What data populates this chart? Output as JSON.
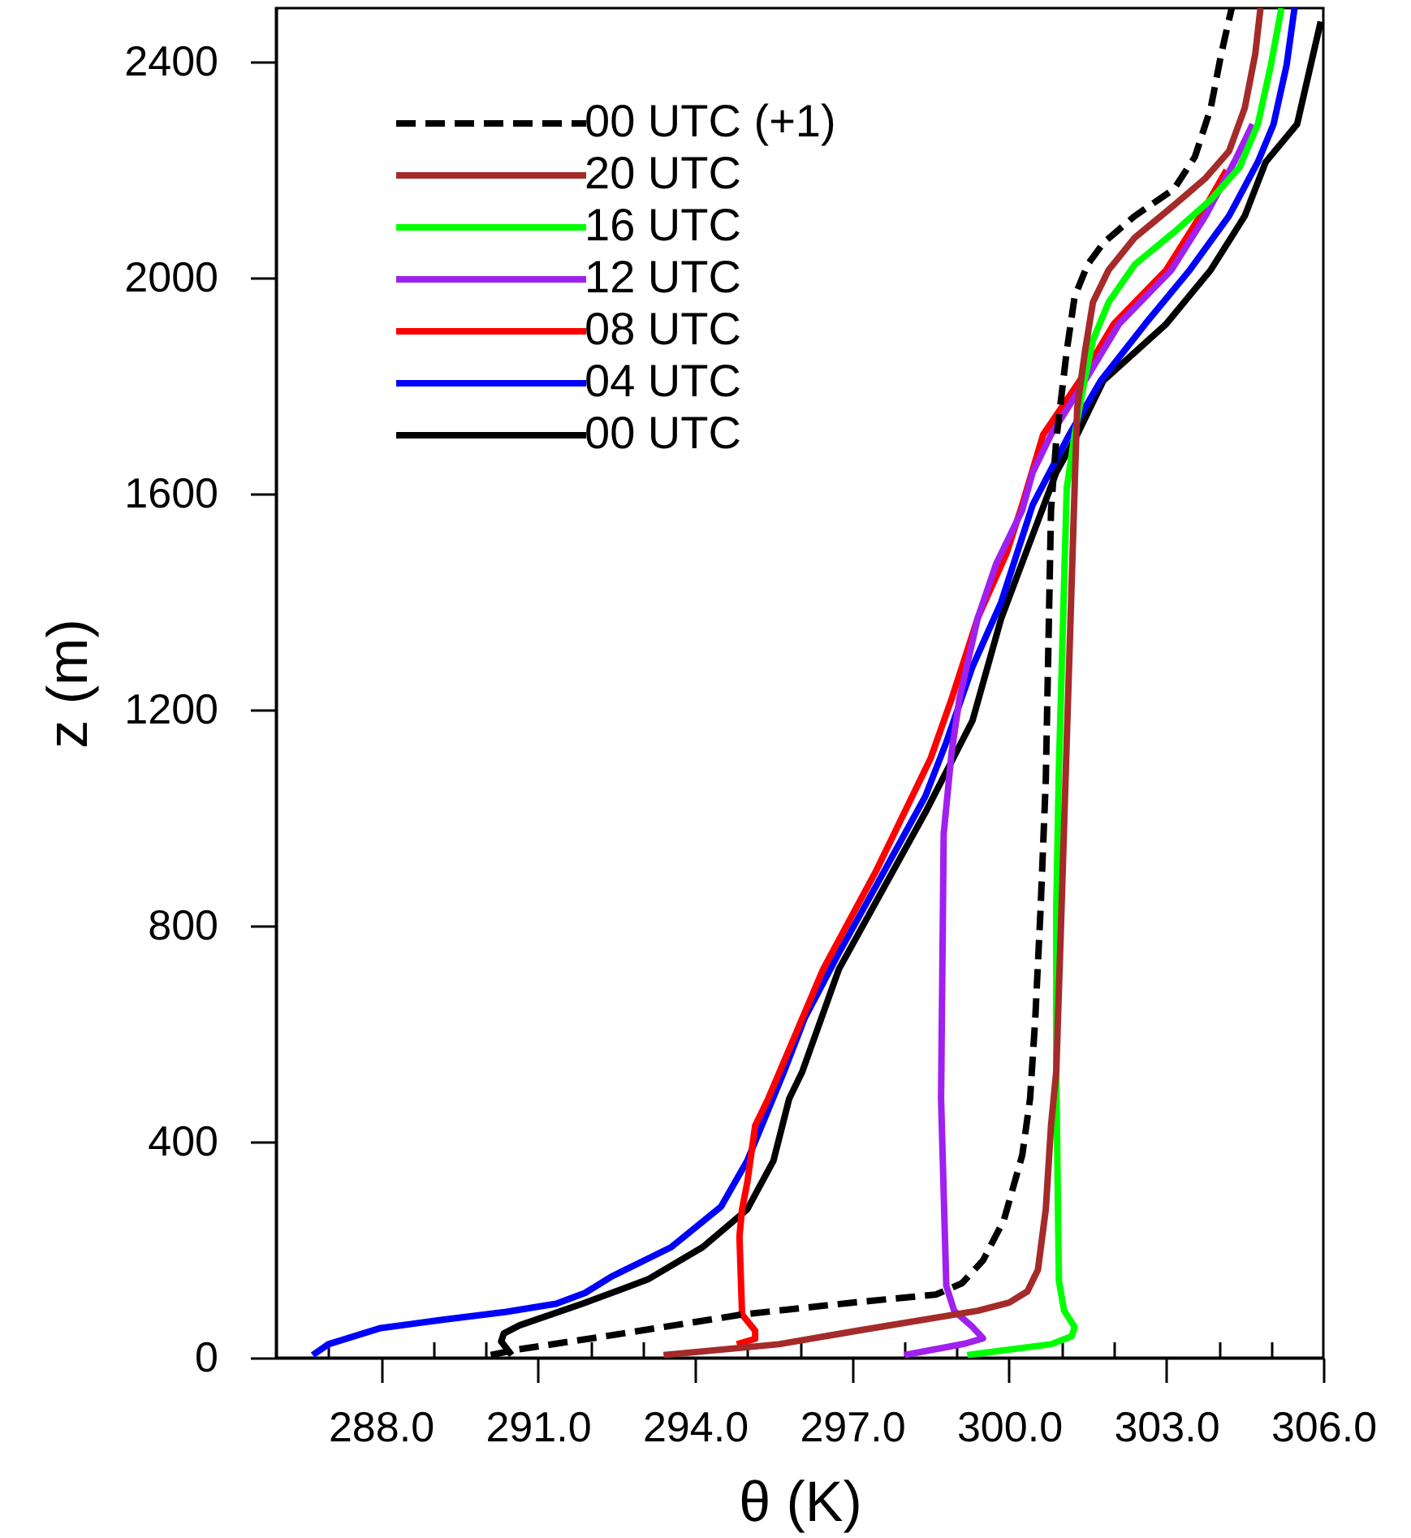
{
  "chart_data": {
    "type": "line",
    "xlabel": "θ (K)",
    "ylabel": "z (m)",
    "xlim": [
      286.0,
      306.0
    ],
    "ylim": [
      0,
      2500
    ],
    "xticks": [
      {
        "value": 287,
        "label": null
      },
      {
        "value": 288,
        "label": "288.0"
      },
      {
        "value": 289,
        "label": null
      },
      {
        "value": 290,
        "label": null
      },
      {
        "value": 291,
        "label": "291.0"
      },
      {
        "value": 292,
        "label": null
      },
      {
        "value": 293,
        "label": null
      },
      {
        "value": 294,
        "label": "294.0"
      },
      {
        "value": 295,
        "label": null
      },
      {
        "value": 296,
        "label": null
      },
      {
        "value": 297,
        "label": "297.0"
      },
      {
        "value": 298,
        "label": null
      },
      {
        "value": 299,
        "label": null
      },
      {
        "value": 300,
        "label": "300.0"
      },
      {
        "value": 301,
        "label": null
      },
      {
        "value": 302,
        "label": null
      },
      {
        "value": 303,
        "label": "303.0"
      },
      {
        "value": 304,
        "label": null
      },
      {
        "value": 305,
        "label": null
      },
      {
        "value": 306,
        "label": "306.0"
      }
    ],
    "yticks": [
      0,
      400,
      800,
      1200,
      1600,
      2000,
      2400
    ],
    "legend": "top left",
    "line_style": "solid",
    "series": [
      {
        "name": "00 UTC (+1)",
        "color": "#000000",
        "line_style": "dashed",
        "x": [
          290.1,
          290.6,
          292.3,
          294.9,
          297.0,
          298.6,
          299.1,
          299.5,
          299.9,
          300.25,
          300.4,
          300.5,
          300.6,
          300.7,
          300.8,
          300.9,
          301.1,
          301.25,
          301.5,
          301.8,
          302.4,
          303.15,
          303.55,
          303.85,
          304.05,
          304.25
        ],
        "values": [
          5,
          15,
          40,
          80,
          102,
          117,
          138,
          180,
          255,
          375,
          480,
          630,
          830,
          1070,
          1570,
          1700,
          1865,
          1965,
          2025,
          2065,
          2115,
          2165,
          2225,
          2315,
          2415,
          2500
        ]
      },
      {
        "name": "20 UTC",
        "color": "#a52a2a",
        "x": [
          293.4,
          295.6,
          297.1,
          299.4,
          300.0,
          300.35,
          300.55,
          300.7,
          300.8,
          300.9,
          301.0,
          301.25,
          301.3,
          301.45,
          301.6,
          301.9,
          302.4,
          303.15,
          303.75,
          304.2,
          304.5,
          304.7,
          304.8
        ],
        "values": [
          5,
          25,
          50,
          87,
          102,
          123,
          163,
          275,
          430,
          530,
          830,
          1610,
          1760,
          1865,
          1955,
          2015,
          2075,
          2135,
          2185,
          2235,
          2315,
          2415,
          2500
        ]
      },
      {
        "name": "16 UTC",
        "color": "#00ff00",
        "x": [
          299.2,
          300.8,
          301.2,
          301.25,
          301.05,
          300.95,
          300.9,
          300.9,
          300.95,
          301.1,
          301.25,
          301.45,
          301.6,
          301.9,
          302.4,
          303.15,
          303.85,
          304.4,
          304.75,
          305.0,
          305.2
        ],
        "values": [
          5,
          25,
          40,
          57,
          87,
          143,
          530,
          830,
          1090,
          1610,
          1710,
          1815,
          1885,
          1955,
          2025,
          2085,
          2145,
          2205,
          2285,
          2395,
          2500
        ]
      },
      {
        "name": "12 UTC",
        "color": "#a020f0",
        "x": [
          298.0,
          299.15,
          299.5,
          299.3,
          298.95,
          298.8,
          298.7,
          298.75,
          298.9,
          299.05,
          299.4,
          299.75,
          300.25,
          300.45,
          300.8,
          301.45,
          302.1,
          303.1,
          303.75,
          304.3,
          304.65
        ],
        "values": [
          5,
          26,
          36,
          57,
          87,
          133,
          480,
          970,
          1120,
          1220,
          1370,
          1470,
          1570,
          1640,
          1710,
          1810,
          1915,
          2015,
          2115,
          2215,
          2285
        ]
      },
      {
        "name": "08 UTC",
        "color": "#ff0000",
        "x": [
          294.8,
          295.15,
          295.15,
          294.9,
          294.85,
          294.9,
          295.0,
          295.15,
          295.4,
          296.45,
          297.45,
          298.5,
          298.9,
          299.4,
          299.95,
          300.25,
          300.65,
          301.35,
          302.0,
          303.0,
          303.65,
          304.15
        ],
        "values": [
          25,
          35,
          50,
          80,
          225,
          275,
          325,
          430,
          480,
          720,
          900,
          1110,
          1220,
          1370,
          1490,
          1580,
          1710,
          1810,
          1915,
          2015,
          2115,
          2200
        ]
      },
      {
        "name": "04 UTC",
        "color": "#0000ff",
        "x": [
          286.7,
          287.0,
          288.0,
          289.15,
          290.4,
          291.35,
          291.9,
          292.4,
          293.55,
          294.5,
          295.0,
          295.7,
          296.1,
          296.75,
          297.55,
          298.4,
          298.8,
          299.3,
          299.85,
          300.45,
          301.15,
          301.75,
          302.6,
          303.45,
          304.2,
          304.75,
          305.05,
          305.3,
          305.45
        ],
        "values": [
          5,
          25,
          55,
          70,
          85,
          100,
          120,
          150,
          205,
          280,
          365,
          530,
          630,
          750,
          890,
          1040,
          1140,
          1280,
          1400,
          1580,
          1710,
          1810,
          1915,
          2015,
          2115,
          2215,
          2285,
          2395,
          2500
        ]
      },
      {
        "name": "00 UTC",
        "color": "#000000",
        "x": [
          290.5,
          290.3,
          290.35,
          290.65,
          291.85,
          293.1,
          294.15,
          295.0,
          295.5,
          295.8,
          296.05,
          296.75,
          298.4,
          299.3,
          299.85,
          300.55,
          300.9,
          301.3,
          301.8,
          303.0,
          303.85,
          304.5,
          304.9,
          305.5,
          305.95
        ],
        "values": [
          5,
          30,
          45,
          60,
          100,
          145,
          205,
          275,
          365,
          480,
          530,
          720,
          1010,
          1180,
          1370,
          1550,
          1640,
          1710,
          1810,
          1915,
          2015,
          2115,
          2215,
          2285,
          2475
        ]
      }
    ]
  }
}
